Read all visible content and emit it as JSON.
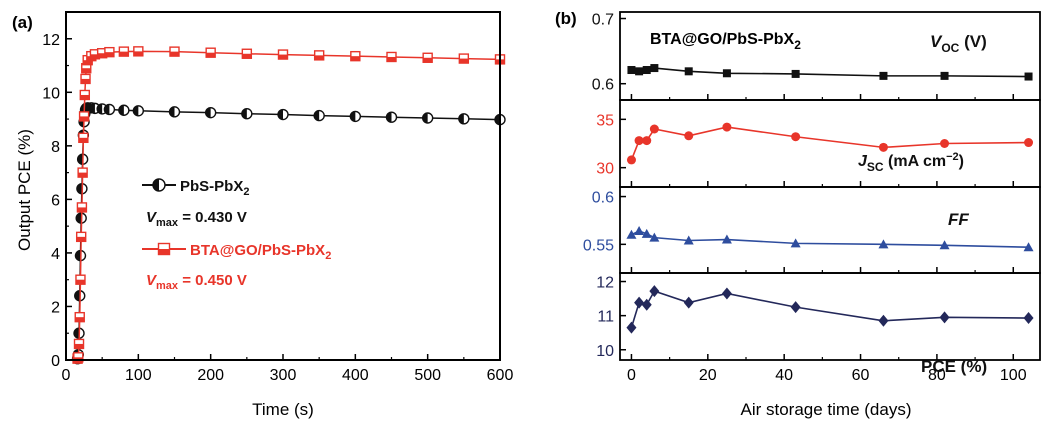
{
  "panel_a": {
    "label": "(a)",
    "ylabel": "Output PCE (%)",
    "xlabel": "Time (s)",
    "legend": [
      {
        "name_main": "PbS-PbX",
        "name_sub": "2",
        "vmax_prefix": "V",
        "vmax_sub": "max",
        "vmax_value": " = 0.430 V",
        "color": "#111111"
      },
      {
        "name_main": "BTA@GO/PbS-PbX",
        "name_sub": "2",
        "vmax_prefix": "V",
        "vmax_sub": "max",
        "vmax_value": " = 0.450 V",
        "color": "#e8352a"
      }
    ]
  },
  "panel_b": {
    "label": "(b)",
    "title_main": "BTA@GO/PbS-PbX",
    "title_sub": "2",
    "xlabel": "Air storage time (days)",
    "voc_label": {
      "main": "V",
      "sub": "OC",
      "rest": " (V)"
    },
    "jsc_label": {
      "main": "J",
      "sub": "SC",
      "rest": " (mA cm",
      "sup": "−2",
      "end": ")"
    },
    "ff_label": "FF",
    "pce_label": "PCE (%)"
  },
  "chart_data": [
    {
      "type": "scatter",
      "title": "",
      "xlabel": "Time (s)",
      "ylabel": "Output PCE (%)",
      "xlim": [
        0,
        600
      ],
      "ylim": [
        0,
        13
      ],
      "xticks": [
        0,
        100,
        200,
        300,
        400,
        500,
        600
      ],
      "yticks": [
        0,
        2,
        4,
        6,
        8,
        10,
        12
      ],
      "series": [
        {
          "name": "PbS-PbX2",
          "color": "#111111",
          "marker": "half-filled-circle",
          "x": [
            16,
            17,
            18,
            19,
            20,
            21,
            22,
            23,
            24,
            25,
            26,
            27,
            28,
            30,
            35,
            40,
            50,
            60,
            80,
            100,
            150,
            200,
            250,
            300,
            350,
            400,
            450,
            500,
            550,
            600
          ],
          "y": [
            0.05,
            0.2,
            1.0,
            2.4,
            3.9,
            5.3,
            6.4,
            7.5,
            8.4,
            8.9,
            9.2,
            9.35,
            9.4,
            9.42,
            9.42,
            9.4,
            9.38,
            9.36,
            9.33,
            9.31,
            9.27,
            9.24,
            9.2,
            9.17,
            9.13,
            9.1,
            9.07,
            9.04,
            9.01,
            8.98
          ]
        },
        {
          "name": "BTA@GO/PbS-PbX2",
          "color": "#e8352a",
          "marker": "half-filled-square",
          "x": [
            16,
            17,
            18,
            19,
            20,
            21,
            22,
            23,
            24,
            25,
            26,
            27,
            28,
            30,
            35,
            40,
            50,
            60,
            80,
            100,
            150,
            200,
            250,
            300,
            350,
            400,
            450,
            500,
            550,
            600
          ],
          "y": [
            0.05,
            0.1,
            0.6,
            1.6,
            3.0,
            4.6,
            5.7,
            7.0,
            8.3,
            9.1,
            9.9,
            10.5,
            10.9,
            11.2,
            11.35,
            11.42,
            11.46,
            11.5,
            11.52,
            11.53,
            11.52,
            11.48,
            11.44,
            11.41,
            11.38,
            11.35,
            11.32,
            11.29,
            11.26,
            11.23
          ]
        }
      ]
    },
    {
      "type": "line",
      "name": "V_OC (V)",
      "xlabel": "Air storage time (days)",
      "xlim": [
        -3,
        107
      ],
      "ylim": [
        0.575,
        0.71
      ],
      "yticks": [
        0.6,
        0.7
      ],
      "xticks": [
        0,
        20,
        40,
        60,
        80,
        100
      ],
      "color": "#111111",
      "marker": "square",
      "x": [
        0,
        2,
        4,
        6,
        15,
        25,
        43,
        66,
        82,
        104
      ],
      "y": [
        0.621,
        0.619,
        0.621,
        0.624,
        0.619,
        0.616,
        0.615,
        0.612,
        0.612,
        0.611
      ]
    },
    {
      "type": "line",
      "name": "J_SC (mA cm-2)",
      "xlabel": "Air storage time (days)",
      "xlim": [
        -3,
        107
      ],
      "ylim": [
        28.0,
        37.0
      ],
      "yticks": [
        30,
        35
      ],
      "xticks": [
        0,
        20,
        40,
        60,
        80,
        100
      ],
      "color": "#e8352a",
      "marker": "circle",
      "x": [
        0,
        2,
        4,
        6,
        15,
        25,
        43,
        66,
        82,
        104
      ],
      "y": [
        30.8,
        32.8,
        32.8,
        34.0,
        33.3,
        34.2,
        33.2,
        32.1,
        32.5,
        32.6
      ]
    },
    {
      "type": "line",
      "name": "FF",
      "xlabel": "Air storage time (days)",
      "xlim": [
        -3,
        107
      ],
      "ylim": [
        0.52,
        0.61
      ],
      "yticks": [
        0.55,
        0.6
      ],
      "xticks": [
        0,
        20,
        40,
        60,
        80,
        100
      ],
      "color": "#2e4d9e",
      "marker": "triangle",
      "x": [
        0,
        2,
        4,
        6,
        15,
        25,
        43,
        66,
        82,
        104
      ],
      "y": [
        0.56,
        0.564,
        0.561,
        0.557,
        0.554,
        0.555,
        0.551,
        0.55,
        0.549,
        0.547
      ]
    },
    {
      "type": "line",
      "name": "PCE (%)",
      "xlabel": "Air storage time (days)",
      "xlim": [
        -3,
        107
      ],
      "ylim": [
        9.7,
        12.25
      ],
      "yticks": [
        10,
        11,
        12
      ],
      "xticks": [
        0,
        20,
        40,
        60,
        80,
        100
      ],
      "color": "#23285a",
      "marker": "diamond",
      "x": [
        0,
        2,
        4,
        6,
        15,
        25,
        43,
        66,
        82,
        104
      ],
      "y": [
        10.65,
        11.38,
        11.32,
        11.72,
        11.38,
        11.65,
        11.25,
        10.85,
        10.95,
        10.93
      ]
    }
  ]
}
